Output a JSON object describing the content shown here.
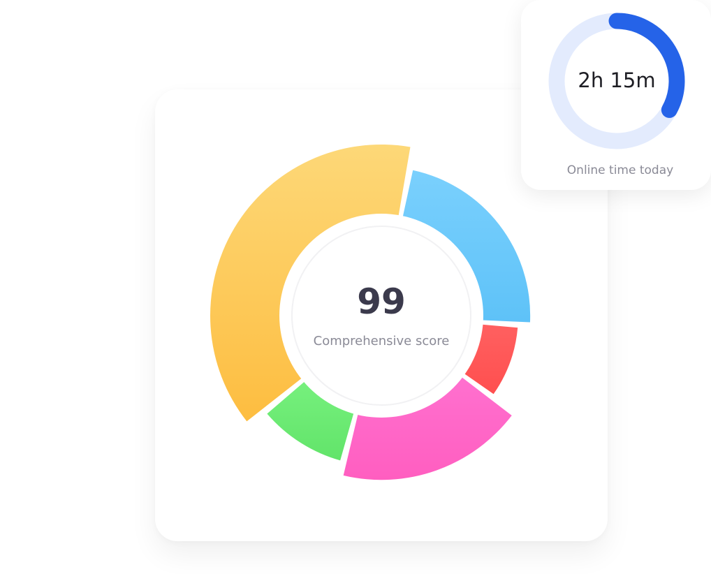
{
  "score_card": {
    "score": "99",
    "label": "Comprehensive score"
  },
  "online_card": {
    "value": "2h 15m",
    "label": "Online time today",
    "progress": 0.33,
    "colors": {
      "progress": "#2563e8",
      "track": "#e3ebfd"
    }
  },
  "chart_data": {
    "type": "pie",
    "style": "donut with variable segment radius",
    "segments": [
      {
        "color_top": "#7ad0fd",
        "color_bottom": "#5ec2f8",
        "share": 0.23,
        "relative_radius": 0.87
      },
      {
        "color_top": "#ff6060",
        "color_bottom": "#ff4f4f",
        "share": 0.09,
        "relative_radius": 0.8
      },
      {
        "color_top": "#ff70cf",
        "color_bottom": "#ff5ec0",
        "share": 0.19,
        "relative_radius": 0.96
      },
      {
        "color_top": "#76f07d",
        "color_bottom": "#62e46a",
        "share": 0.1,
        "relative_radius": 0.88
      },
      {
        "color_top": "#fdd878",
        "color_bottom": "#fdbd40",
        "share": 0.39,
        "relative_radius": 1.0
      }
    ]
  }
}
